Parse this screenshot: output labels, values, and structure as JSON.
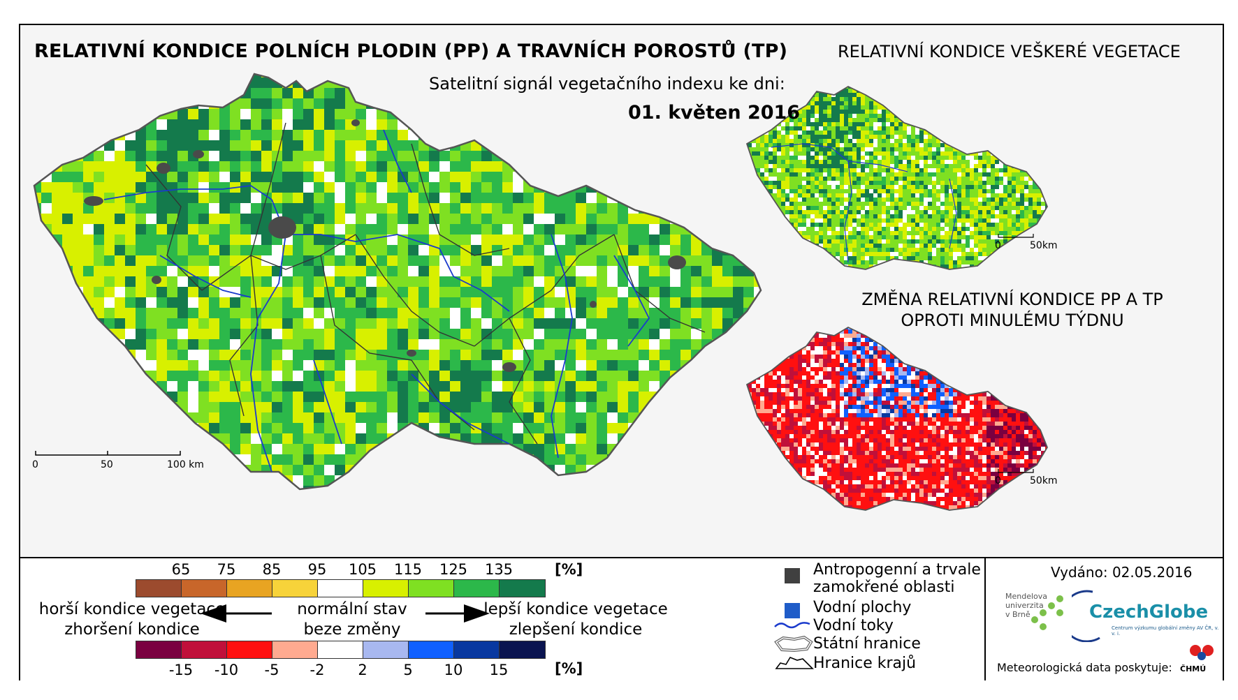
{
  "titles": {
    "main": "RELATIVNÍ KONDICE POLNÍCH PLODIN (PP) A TRAVNÍCH POROSTŮ (TP)",
    "side": "RELATIVNÍ KONDICE VEŠKERÉ VEGETACE",
    "subtitle": "Satelitní signál vegetačního indexu ke dni:",
    "date": "01. květen 2016",
    "change_line1": "ZMĚNA RELATIVNÍ KONDICE PP A TP",
    "change_line2": "OPROTI MINULÉMU TÝDNU"
  },
  "scalebars": {
    "main": [
      "0",
      "50",
      "100 km"
    ],
    "small_top": [
      "0",
      "50km"
    ],
    "small_bottom": [
      "0",
      "50km"
    ]
  },
  "legend": {
    "condition_ticks": [
      "65",
      "75",
      "85",
      "95",
      "105",
      "115",
      "125",
      "135"
    ],
    "condition_unit": "[%]",
    "condition_colors": [
      "#9c4b2e",
      "#c8662a",
      "#e8a422",
      "#f7d33a",
      "#ffffff",
      "#d8f000",
      "#7fe022",
      "#2cb84a",
      "#147a4c"
    ],
    "change_ticks": [
      "-15",
      "-10",
      "-5",
      "-2",
      "2",
      "5",
      "10",
      "15"
    ],
    "change_unit": "[%]",
    "change_colors": [
      "#7a0040",
      "#c0103a",
      "#ff1010",
      "#ffaa90",
      "#ffffff",
      "#a8b8f0",
      "#1060ff",
      "#0838a0",
      "#0a1450"
    ],
    "worse_1": "horší kondice vegetace",
    "worse_2": "zhoršení kondice",
    "normal_1": "normální stav",
    "normal_2": "beze změny",
    "better_1": "lepší kondice vegetace",
    "better_2": "zlepšení kondice"
  },
  "symbols": {
    "anthro_1": "Antropogenní a trvale",
    "anthro_2": "zamokřené oblasti",
    "water_bodies": "Vodní plochy",
    "rivers": "Vodní toky",
    "state_border": "Státní hranice",
    "region_border": "Hranice krajů",
    "anthro_color": "#404040",
    "water_color": "#1f5cc8"
  },
  "issuer": {
    "issued": "Vydáno: 02.05.2016",
    "mendel_1": "Mendelova",
    "mendel_2": "univerzita",
    "mendel_3": "v Brně",
    "czechglobe": "CzechGlobe",
    "czechglobe_sub": "Centrum výzkumu globální změny AV ČR, v. v. i.",
    "meteo": "Meteorologická data poskytuje:",
    "chmu": "ČHMÚ"
  }
}
